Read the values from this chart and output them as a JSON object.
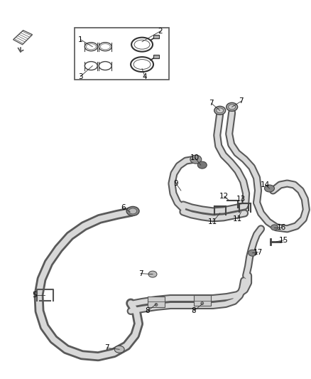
{
  "background_color": "#ffffff",
  "line_color": "#4a4a4a",
  "label_color": "#000000",
  "label_fontsize": 7.5,
  "fig_width": 4.38,
  "fig_height": 5.33,
  "dpi": 100
}
